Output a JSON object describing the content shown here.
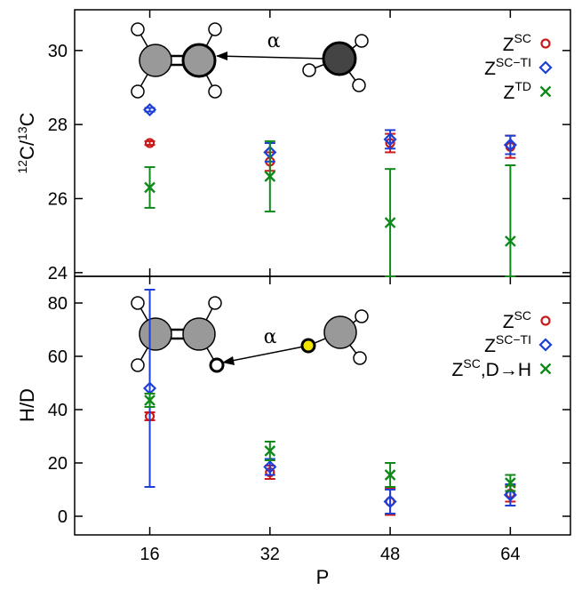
{
  "chart_data": [
    {
      "type": "scatter",
      "panel": "top",
      "xlabel": "",
      "ylabel": {
        "pre": "12",
        "mid": "C/",
        "sup2": "13",
        "post": "C"
      },
      "xlim": [
        6,
        72
      ],
      "ylim": [
        23.9,
        31.1
      ],
      "xticks": [
        16,
        32,
        48,
        64
      ],
      "yticks": [
        24,
        26,
        28,
        30
      ],
      "x": [
        16,
        32,
        48,
        64
      ],
      "series": [
        {
          "key": "sc",
          "legend_base": "Z",
          "legend_sup": "SC",
          "legend_sub_text": "",
          "marker": "circle",
          "color": "#cc1a1a",
          "values": [
            27.5,
            27.0,
            27.5,
            27.4
          ],
          "err": [
            0.05,
            0.25,
            0.25,
            0.3
          ]
        },
        {
          "key": "scti",
          "legend_base": "Z",
          "legend_sup": "SC−TI",
          "legend_sub_text": "",
          "marker": "diamond",
          "color": "#1c3fd6",
          "values": [
            28.4,
            27.25,
            27.6,
            27.45
          ],
          "err": [
            0.05,
            0.25,
            0.25,
            0.25
          ]
        },
        {
          "key": "td",
          "legend_base": "Z",
          "legend_sup": "TD",
          "legend_sub_text": "",
          "marker": "x",
          "color": "#0f8a1a",
          "values": [
            26.3,
            26.6,
            25.35,
            24.85
          ],
          "err": [
            0.55,
            0.95,
            1.45,
            2.05
          ]
        }
      ],
      "annotation": {
        "symbol": "α",
        "molecule": "ethylene-methyl-top"
      },
      "legend_position": "top-right"
    },
    {
      "type": "scatter",
      "panel": "bottom",
      "xlabel": "P",
      "ylabel": {
        "text": "H/D"
      },
      "xlim": [
        6,
        72
      ],
      "ylim": [
        -7,
        90
      ],
      "xticks": [
        16,
        32,
        48,
        64
      ],
      "yticks": [
        0,
        20,
        40,
        60,
        80
      ],
      "x": [
        16,
        32,
        48,
        64
      ],
      "series": [
        {
          "key": "sc",
          "legend_base": "Z",
          "legend_sup": "SC",
          "legend_sub_text": "",
          "marker": "circle",
          "color": "#cc1a1a",
          "values": [
            37.5,
            16.5,
            5.5,
            8.5
          ],
          "err": [
            1.5,
            2.5,
            5.0,
            3.0
          ]
        },
        {
          "key": "scti",
          "legend_base": "Z",
          "legend_sup": "SC−TI",
          "legend_sub_text": "",
          "marker": "diamond",
          "color": "#1c3fd6",
          "values": [
            48.0,
            18.5,
            5.5,
            8.0
          ],
          "err": [
            37.0,
            3.0,
            4.5,
            4.0
          ]
        },
        {
          "key": "scdh",
          "legend_base": "Z",
          "legend_sup": "SC",
          "legend_sub_text": ",D→H",
          "marker": "x",
          "color": "#0f8a1a",
          "values": [
            43.5,
            24.5,
            15.5,
            12.5
          ],
          "err": [
            2.5,
            3.5,
            4.5,
            3.0
          ]
        }
      ],
      "annotation": {
        "symbol": "α",
        "molecule": "ethylene-methyl-bottom"
      },
      "legend_position": "top-right"
    }
  ]
}
